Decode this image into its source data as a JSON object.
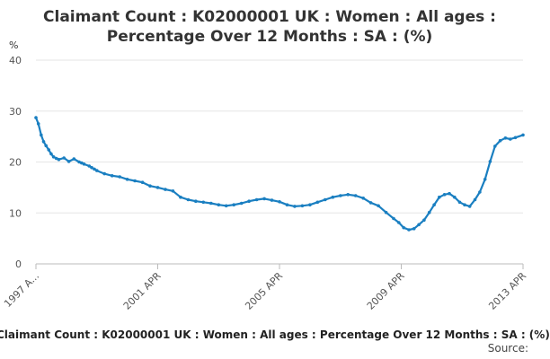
{
  "chart_data": {
    "type": "line",
    "title": "Claimant Count : K02000001 UK : Women : All ages :\nPercentage Over 12 Months : SA : (%)",
    "unit": "%",
    "xlabel": "",
    "ylabel": "%",
    "ylim": [
      0,
      40
    ],
    "yticks": [
      0,
      10,
      20,
      30,
      40
    ],
    "xlim": [
      1997.25,
      2013.25
    ],
    "xticks": [
      {
        "x": 1997.25,
        "label": "1997 A..."
      },
      {
        "x": 2001.25,
        "label": "2001 APR"
      },
      {
        "x": 2005.25,
        "label": "2005 APR"
      },
      {
        "x": 2009.25,
        "label": "2009 APR"
      },
      {
        "x": 2013.25,
        "label": "2013 APR"
      }
    ],
    "grid": true,
    "legend": "none",
    "color": "#1a7fc1",
    "series": [
      {
        "x": [
          1997.25,
          1997.33,
          1997.42,
          1997.5,
          1997.58,
          1997.67,
          1997.75,
          1997.83,
          1997.92,
          1998.0,
          1998.17,
          1998.33,
          1998.5,
          1998.67,
          1998.75,
          1998.83,
          1999.0,
          1999.08,
          1999.17,
          1999.25,
          1999.5,
          1999.75,
          2000.0,
          2000.25,
          2000.5,
          2000.75,
          2001.0,
          2001.25,
          2001.5,
          2001.75,
          2002.0,
          2002.25,
          2002.5,
          2002.75,
          2003.0,
          2003.25,
          2003.5,
          2003.75,
          2004.0,
          2004.25,
          2004.5,
          2004.75,
          2005.0,
          2005.25,
          2005.5,
          2005.75,
          2006.0,
          2006.25,
          2006.5,
          2006.75,
          2007.0,
          2007.25,
          2007.5,
          2007.75,
          2008.0,
          2008.25,
          2008.5,
          2008.75,
          2009.0,
          2009.17,
          2009.33,
          2009.5,
          2009.67,
          2009.83,
          2010.0,
          2010.17,
          2010.33,
          2010.5,
          2010.67,
          2010.83,
          2011.0,
          2011.17,
          2011.33,
          2011.5,
          2011.67,
          2011.83,
          2012.0,
          2012.17,
          2012.33,
          2012.5,
          2012.67,
          2012.83,
          2013.0,
          2013.25
        ],
        "values": [
          28.7,
          27.5,
          25.3,
          24.0,
          23.2,
          22.4,
          21.6,
          21.0,
          20.7,
          20.5,
          20.8,
          20.1,
          20.6,
          20.0,
          19.8,
          19.6,
          19.2,
          18.9,
          18.6,
          18.3,
          17.7,
          17.3,
          17.1,
          16.6,
          16.3,
          16.0,
          15.3,
          15.0,
          14.6,
          14.3,
          13.1,
          12.6,
          12.3,
          12.1,
          11.9,
          11.6,
          11.4,
          11.6,
          11.9,
          12.3,
          12.6,
          12.8,
          12.5,
          12.2,
          11.6,
          11.3,
          11.4,
          11.6,
          12.1,
          12.6,
          13.1,
          13.4,
          13.6,
          13.4,
          12.9,
          12.0,
          11.4,
          10.1,
          8.9,
          8.1,
          7.1,
          6.7,
          6.9,
          7.7,
          8.6,
          10.1,
          11.6,
          13.1,
          13.6,
          13.8,
          13.1,
          12.1,
          11.6,
          11.3,
          12.6,
          14.1,
          16.6,
          20.1,
          23.1,
          24.2,
          24.7,
          24.5,
          24.8,
          25.3
        ]
      }
    ]
  },
  "footer": {
    "title": "Claimant Count : K02000001 UK : Women : All ages : Percentage Over 12 Months : SA : (%)",
    "source": "Source:"
  }
}
